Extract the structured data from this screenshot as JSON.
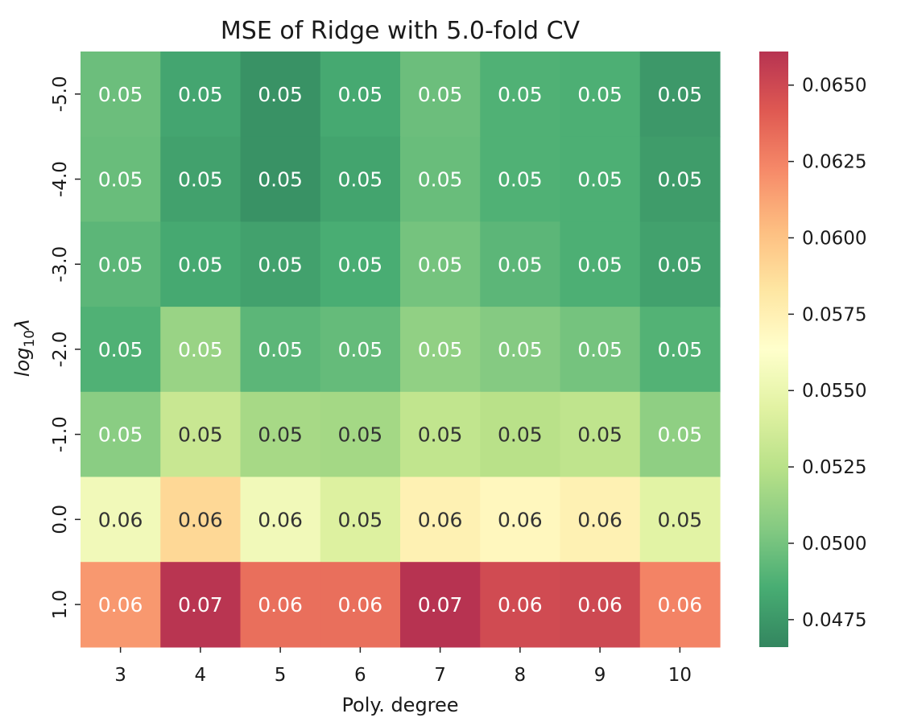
{
  "chart_data": {
    "type": "heatmap",
    "title": "MSE of Ridge with 5.0-fold CV",
    "xlabel": "Poly. degree",
    "ylabel_base": "log",
    "ylabel_sub": "10",
    "ylabel_sym": "λ",
    "x_categories": [
      "3",
      "4",
      "5",
      "6",
      "7",
      "8",
      "9",
      "10"
    ],
    "y_categories": [
      "-5.0",
      "-4.0",
      "-3.0",
      "-2.0",
      "-1.0",
      "0.0",
      "1.0"
    ],
    "values": [
      [
        0.0497,
        0.0482,
        0.0472,
        0.0484,
        0.0497,
        0.0488,
        0.0487,
        0.0475
      ],
      [
        0.0496,
        0.048,
        0.0472,
        0.0481,
        0.0496,
        0.0488,
        0.0487,
        0.0477
      ],
      [
        0.0492,
        0.0484,
        0.048,
        0.0486,
        0.05,
        0.0492,
        0.0487,
        0.048
      ],
      [
        0.0488,
        0.0513,
        0.0492,
        0.0495,
        0.051,
        0.0505,
        0.05,
        0.0489
      ],
      [
        0.0507,
        0.0532,
        0.0518,
        0.0517,
        0.0529,
        0.0525,
        0.0528,
        0.0509
      ],
      [
        0.0555,
        0.059,
        0.0555,
        0.0542,
        0.0575,
        0.057,
        0.0575,
        0.0545
      ],
      [
        0.0617,
        0.066,
        0.0633,
        0.0633,
        0.0661,
        0.0649,
        0.065,
        0.0625
      ]
    ],
    "labels": [
      [
        "0.05",
        "0.05",
        "0.05",
        "0.05",
        "0.05",
        "0.05",
        "0.05",
        "0.05"
      ],
      [
        "0.05",
        "0.05",
        "0.05",
        "0.05",
        "0.05",
        "0.05",
        "0.05",
        "0.05"
      ],
      [
        "0.05",
        "0.05",
        "0.05",
        "0.05",
        "0.05",
        "0.05",
        "0.05",
        "0.05"
      ],
      [
        "0.05",
        "0.05",
        "0.05",
        "0.05",
        "0.05",
        "0.05",
        "0.05",
        "0.05"
      ],
      [
        "0.05",
        "0.05",
        "0.05",
        "0.05",
        "0.05",
        "0.05",
        "0.05",
        "0.05"
      ],
      [
        "0.06",
        "0.06",
        "0.06",
        "0.05",
        "0.06",
        "0.06",
        "0.06",
        "0.05"
      ],
      [
        "0.06",
        "0.07",
        "0.06",
        "0.06",
        "0.07",
        "0.06",
        "0.06",
        "0.06"
      ]
    ],
    "vmin": 0.0466,
    "vmax": 0.0661,
    "colormap": "RdYlGn_r",
    "colorbar_ticks": [
      "0.0475",
      "0.0500",
      "0.0525",
      "0.0550",
      "0.0575",
      "0.0600",
      "0.0625",
      "0.0650"
    ],
    "colorbar_values": [
      0.0475,
      0.05,
      0.0525,
      0.055,
      0.0575,
      0.06,
      0.0625,
      0.065
    ],
    "grid": false,
    "colorbar_position": "right"
  }
}
